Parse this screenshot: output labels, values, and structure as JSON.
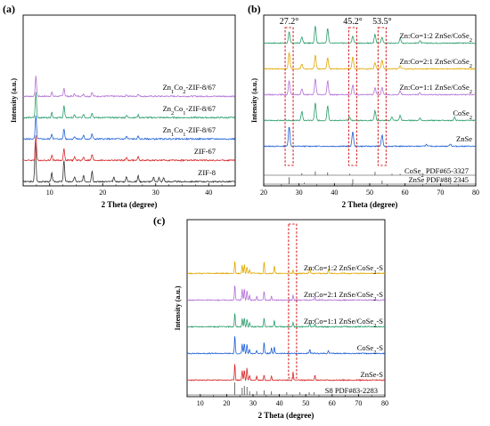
{
  "figure": {
    "panels": [
      "(a)",
      "(b)",
      "(c)"
    ]
  },
  "chart_data": [
    {
      "type": "line",
      "panel": "(a)",
      "xlabel": "2 Theta (degree)",
      "ylabel": "Intensity (a.u.)",
      "xlim": [
        5,
        45
      ],
      "xticks": [
        "10",
        "20",
        "30",
        "40"
      ],
      "grid": false,
      "series": [
        {
          "name": "ZIF-8",
          "color": "#333333",
          "peaks": [
            [
              7.3,
              48
            ],
            [
              10.4,
              10
            ],
            [
              12.7,
              26
            ],
            [
              14.7,
              6
            ],
            [
              16.4,
              7
            ],
            [
              18.0,
              13
            ],
            [
              22.1,
              5
            ],
            [
              24.5,
              6
            ],
            [
              26.7,
              7
            ],
            [
              29.6,
              5
            ],
            [
              30.6,
              5
            ],
            [
              31.5,
              5
            ]
          ]
        },
        {
          "name": "ZIF-67",
          "color": "#d62728",
          "peaks": [
            [
              7.4,
              30
            ],
            [
              10.4,
              6
            ],
            [
              12.7,
              14
            ],
            [
              14.7,
              4
            ],
            [
              16.4,
              4
            ],
            [
              18.0,
              7
            ],
            [
              24.5,
              3
            ],
            [
              26.7,
              4
            ]
          ]
        },
        {
          "name": "Zn1Co1-ZIF-8/67",
          "color": "#1f5fd6",
          "peaks": [
            [
              7.4,
              28
            ],
            [
              10.4,
              6
            ],
            [
              12.7,
              12
            ],
            [
              14.7,
              3
            ],
            [
              16.4,
              4
            ],
            [
              18.0,
              6
            ],
            [
              24.5,
              3
            ],
            [
              26.7,
              3
            ]
          ]
        },
        {
          "name": "Zn2Co1-ZIF-8/67",
          "color": "#2a9d6a",
          "peaks": [
            [
              7.4,
              30
            ],
            [
              10.4,
              6
            ],
            [
              12.7,
              14
            ],
            [
              14.7,
              3
            ],
            [
              16.4,
              4
            ],
            [
              18.0,
              6
            ],
            [
              24.5,
              3
            ],
            [
              26.7,
              3
            ]
          ]
        },
        {
          "name": "Zn1Co2-ZIF-8/67",
          "color": "#b270d6",
          "peaks": [
            [
              7.4,
              24
            ],
            [
              10.4,
              5
            ],
            [
              12.7,
              10
            ],
            [
              14.7,
              3
            ],
            [
              16.4,
              3
            ],
            [
              18.0,
              5
            ],
            [
              24.5,
              2
            ],
            [
              26.7,
              3
            ]
          ]
        }
      ]
    },
    {
      "type": "line",
      "panel": "(b)",
      "xlabel": "2 Theta (degree)",
      "ylabel": "Intensity (a.u.)",
      "xlim": [
        20,
        80
      ],
      "xticks": [
        "20",
        "30",
        "40",
        "50",
        "60",
        "70",
        "80"
      ],
      "grid": false,
      "highlight_peaks": [
        "27.2°",
        "45.2°",
        "53.5°"
      ],
      "highlight_x": [
        27.2,
        45.2,
        53.5
      ],
      "reference_patterns": [
        {
          "name": "ZnSe PDF#88 2345",
          "color": "#333333",
          "sticks": [
            [
              27.2,
              14
            ],
            [
              31.5,
              3
            ],
            [
              45.2,
              10
            ],
            [
              53.5,
              7
            ],
            [
              66.0,
              2
            ],
            [
              72.8,
              3
            ]
          ]
        },
        {
          "name": "CoSe2 PDF#65-3327",
          "color": "#333333",
          "sticks": [
            [
              30.8,
              4
            ],
            [
              34.6,
              8
            ],
            [
              38.1,
              6
            ],
            [
              44.3,
              3
            ],
            [
              51.5,
              7
            ],
            [
              56.3,
              3
            ],
            [
              58.6,
              3
            ],
            [
              64.2,
              2
            ]
          ]
        }
      ],
      "series": [
        {
          "name": "ZnSe",
          "color": "#1f5fd6",
          "peaks": [
            [
              27.2,
              32
            ],
            [
              45.2,
              24
            ],
            [
              53.5,
              18
            ],
            [
              66.0,
              3
            ],
            [
              72.8,
              4
            ]
          ]
        },
        {
          "name": "CoSe2",
          "color": "#2a9d6a",
          "peaks": [
            [
              30.8,
              14
            ],
            [
              34.6,
              28
            ],
            [
              38.1,
              24
            ],
            [
              44.3,
              6
            ],
            [
              51.5,
              16
            ],
            [
              56.3,
              6
            ],
            [
              58.6,
              8
            ],
            [
              64.2,
              4
            ],
            [
              74.0,
              5
            ]
          ]
        },
        {
          "name": "Zn:Co=1:1 ZnSe/CoSe2",
          "color": "#b270d6",
          "peaks": [
            [
              27.2,
              22
            ],
            [
              30.8,
              10
            ],
            [
              34.6,
              26
            ],
            [
              38.1,
              22
            ],
            [
              45.2,
              16
            ],
            [
              51.5,
              12
            ],
            [
              53.5,
              12
            ],
            [
              58.6,
              6
            ],
            [
              64.2,
              3
            ]
          ]
        },
        {
          "name": "Zn:Co=2:1 ZnSe/CoSe2",
          "color": "#e0a800",
          "peaks": [
            [
              27.2,
              26
            ],
            [
              30.8,
              8
            ],
            [
              34.6,
              22
            ],
            [
              38.1,
              18
            ],
            [
              45.2,
              20
            ],
            [
              51.5,
              10
            ],
            [
              53.5,
              14
            ],
            [
              58.6,
              5
            ]
          ]
        },
        {
          "name": "Zn:Co=1:2 ZnSe/CoSe2",
          "color": "#2a9d6a",
          "peaks": [
            [
              27.2,
              18
            ],
            [
              30.8,
              10
            ],
            [
              34.6,
              28
            ],
            [
              38.1,
              24
            ],
            [
              45.2,
              12
            ],
            [
              51.5,
              14
            ],
            [
              53.5,
              10
            ],
            [
              58.6,
              7
            ],
            [
              64.2,
              4
            ]
          ]
        }
      ]
    },
    {
      "type": "line",
      "panel": "(c)",
      "xlabel": "2 Theta (degree)",
      "ylabel": "Intensity (a.u.)",
      "xlim": [
        5,
        80
      ],
      "xticks": [
        "10",
        "20",
        "30",
        "40",
        "50",
        "60",
        "70",
        "80"
      ],
      "grid": false,
      "highlight_x": [
        45
      ],
      "reference_patterns": [
        {
          "name": "S8 PDF#83-2283",
          "color": "#333333",
          "sticks": [
            [
              23.1,
              14
            ],
            [
              25.9,
              8
            ],
            [
              26.7,
              10
            ],
            [
              27.7,
              9
            ],
            [
              28.7,
              4
            ],
            [
              31.4,
              4
            ],
            [
              34.2,
              5
            ],
            [
              37.0,
              4
            ],
            [
              42.8,
              3
            ],
            [
              47.8,
              3
            ],
            [
              51.3,
              3
            ],
            [
              53.2,
              3
            ]
          ]
        }
      ],
      "series": [
        {
          "name": "ZnSe-S",
          "color": "#d62728",
          "peaks": [
            [
              23.1,
              26
            ],
            [
              25.9,
              14
            ],
            [
              26.7,
              16
            ],
            [
              27.7,
              18
            ],
            [
              28.7,
              8
            ],
            [
              31.4,
              6
            ],
            [
              34.2,
              8
            ],
            [
              37.0,
              6
            ],
            [
              45.2,
              12
            ],
            [
              53.5,
              8
            ]
          ]
        },
        {
          "name": "CoSe2-S",
          "color": "#1f5fd6",
          "peaks": [
            [
              23.1,
              28
            ],
            [
              25.9,
              14
            ],
            [
              26.7,
              16
            ],
            [
              27.7,
              14
            ],
            [
              28.7,
              6
            ],
            [
              31.4,
              5
            ],
            [
              34.2,
              18
            ],
            [
              37.0,
              8
            ],
            [
              38.1,
              10
            ],
            [
              51.5,
              6
            ],
            [
              58.6,
              4
            ]
          ]
        },
        {
          "name": "Zn:Co=1:1 ZnSe/CoSe2-S",
          "color": "#2a9d6a",
          "peaks": [
            [
              23.1,
              22
            ],
            [
              25.9,
              12
            ],
            [
              26.7,
              14
            ],
            [
              27.7,
              12
            ],
            [
              28.7,
              6
            ],
            [
              34.2,
              14
            ],
            [
              38.1,
              10
            ],
            [
              45.2,
              6
            ],
            [
              51.5,
              6
            ],
            [
              53.5,
              4
            ]
          ]
        },
        {
          "name": "Zn:Co=2:1 ZnSe/CoSe2-S",
          "color": "#b270d6",
          "peaks": [
            [
              23.1,
              24
            ],
            [
              25.9,
              16
            ],
            [
              26.7,
              18
            ],
            [
              27.7,
              14
            ],
            [
              28.7,
              8
            ],
            [
              31.4,
              6
            ],
            [
              34.2,
              14
            ],
            [
              37.0,
              6
            ],
            [
              45.2,
              8
            ],
            [
              53.5,
              5
            ]
          ]
        },
        {
          "name": "Zn:Co=1:2 ZnSe/CoSe2-S",
          "color": "#e0a800",
          "peaks": [
            [
              23.1,
              20
            ],
            [
              25.9,
              12
            ],
            [
              26.7,
              14
            ],
            [
              27.7,
              10
            ],
            [
              28.7,
              6
            ],
            [
              34.2,
              18
            ],
            [
              38.1,
              12
            ],
            [
              45.2,
              5
            ],
            [
              51.5,
              8
            ],
            [
              58.6,
              5
            ]
          ]
        }
      ]
    }
  ]
}
